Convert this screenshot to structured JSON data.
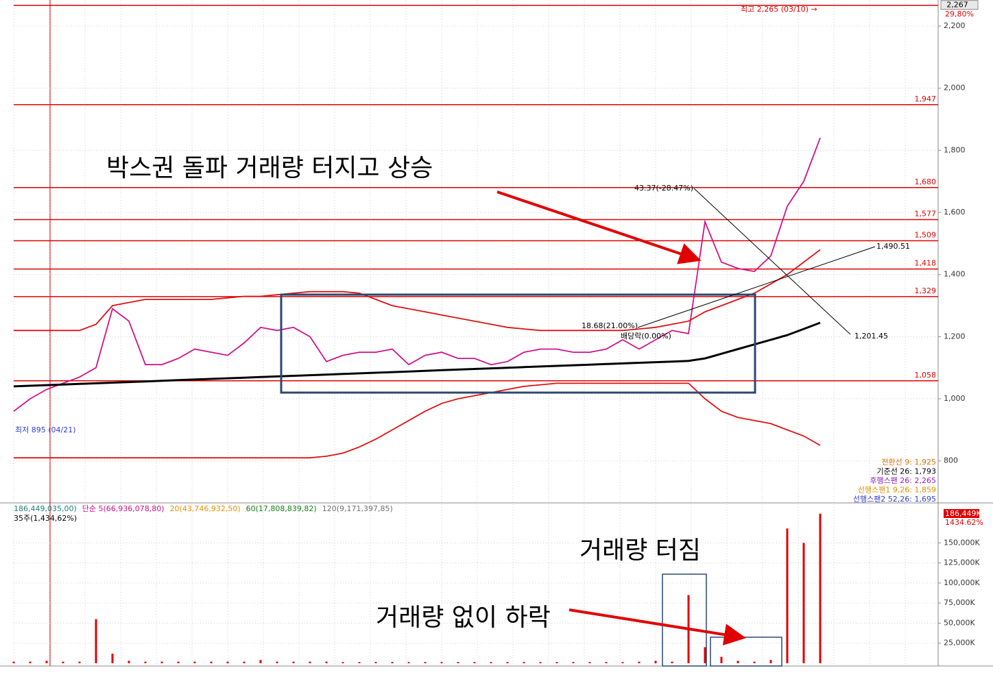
{
  "chart_data": [
    {
      "type": "line",
      "ylim": [
        667,
        2284
      ],
      "yticks": [
        800,
        {
          "value": 1000,
          "label": "1,000"
        },
        {
          "value": 1200,
          "label": "1,200"
        },
        {
          "value": 1400,
          "label": "1,400"
        },
        {
          "value": 1600,
          "label": "1,600"
        },
        {
          "value": 1800,
          "label": "1,800"
        },
        {
          "value": 2000,
          "label": "2,000"
        },
        {
          "value": 2200,
          "label": "2,200"
        }
      ],
      "grid": true,
      "levels": [
        {
          "value": 2267,
          "label": "2,267"
        },
        {
          "value": 1947,
          "label": "1,947"
        },
        {
          "value": 1680,
          "label": "1,680"
        },
        {
          "value": 1577,
          "label": "1,577"
        },
        {
          "value": 1509,
          "label": "1,509"
        },
        {
          "value": 1418,
          "label": "1,418"
        },
        {
          "value": 1329,
          "label": "1,329"
        },
        {
          "value": 1058,
          "label": "1,058"
        }
      ],
      "level_color": "#e00000",
      "series": [
        {
          "color": "#d0108a",
          "values": [
            960,
            1000,
            1030,
            1050,
            1070,
            1100,
            1290,
            1250,
            1110,
            1110,
            1130,
            1160,
            1150,
            1140,
            1180,
            1230,
            1220,
            1230,
            1200,
            1120,
            1140,
            1150,
            1150,
            1160,
            1110,
            1140,
            1150,
            1130,
            1130,
            1110,
            1120,
            1150,
            1160,
            1160,
            1150,
            1150,
            1160,
            1190,
            1160,
            1190,
            1220,
            1210,
            1570,
            1440,
            1420,
            1410,
            1460,
            1620,
            1700,
            1840
          ]
        },
        {
          "color": "#e01010",
          "values": [
            1220,
            1220,
            1220,
            1220,
            1220,
            1240,
            1300,
            1310,
            1320,
            1320,
            1320,
            1320,
            1320,
            1325,
            1330,
            1330,
            1335,
            1340,
            1345,
            1345,
            1345,
            1340,
            1320,
            1300,
            1290,
            1280,
            1270,
            1260,
            1250,
            1240,
            1230,
            1225,
            1220,
            1220,
            1220,
            1220,
            1220,
            1220,
            1225,
            1230,
            1240,
            1250,
            1280,
            1300,
            1320,
            1340,
            1370,
            1400,
            1440,
            1480
          ]
        },
        {
          "color": "#e01010",
          "values": [
            810,
            810,
            810,
            810,
            810,
            810,
            810,
            810,
            810,
            810,
            810,
            810,
            810,
            810,
            810,
            810,
            810,
            810,
            810,
            815,
            825,
            845,
            870,
            900,
            930,
            960,
            985,
            1000,
            1010,
            1020,
            1030,
            1040,
            1045,
            1050,
            1050,
            1050,
            1050,
            1050,
            1050,
            1050,
            1050,
            1050,
            1000,
            960,
            940,
            930,
            920,
            900,
            880,
            850
          ]
        },
        {
          "color": "#000000",
          "values": [
            1040,
            1042,
            1044,
            1046,
            1048,
            1050,
            1052,
            1054,
            1056,
            1058,
            1060,
            1062,
            1064,
            1066,
            1068,
            1070,
            1072,
            1074,
            1076,
            1078,
            1080,
            1082,
            1084,
            1086,
            1088,
            1090,
            1092,
            1094,
            1096,
            1098,
            1100,
            1102,
            1104,
            1106,
            1108,
            1110,
            1112,
            1114,
            1116,
            1118,
            1120,
            1122,
            1130,
            1145,
            1160,
            1175,
            1190,
            1205,
            1225,
            1245
          ]
        }
      ],
      "annotations": [
        "박스권 돌파 거래량 터지고 상승",
        "최고 2,265 (03/10) →",
        "29,80%",
        "43.37(-28.47%)",
        "1,490.51",
        "1,201.45",
        "18.68(21.00%)",
        "배당락(0.00%)",
        "최저 895 (04/21)"
      ],
      "legend_texts": [
        {
          "text": "전환선 9: 1,925",
          "color": "#e07000"
        },
        {
          "text": "기준선 26: 1,793",
          "color": "#000000"
        },
        {
          "text": "후행스팬 26: 2,265",
          "color": "#9020b0"
        },
        {
          "text": "선행스팬1 9,26: 1,859",
          "color": "#e09000"
        },
        {
          "text": "선행스팬2 52,26: 1,695",
          "color": "#3040d0"
        }
      ]
    },
    {
      "type": "bar",
      "ylim": [
        0,
        199000
      ],
      "yticks": [
        {
          "value": 25000,
          "label": "25,000K"
        },
        {
          "value": 50000,
          "label": "50,000K"
        },
        {
          "value": 75000,
          "label": "75,000K"
        },
        {
          "value": 100000,
          "label": "100,000K"
        },
        {
          "value": 125000,
          "label": "125,000K"
        },
        {
          "value": 150000,
          "label": "150,000K"
        }
      ],
      "color": "#e00000",
      "values": [
        2000,
        2000,
        3000,
        2000,
        2000,
        55000,
        12000,
        3000,
        2000,
        2000,
        2000,
        2000,
        2000,
        2000,
        2000,
        4000,
        2000,
        2000,
        2000,
        2000,
        1500,
        1500,
        1500,
        1500,
        1500,
        1500,
        1500,
        1500,
        1500,
        1500,
        1500,
        1500,
        1500,
        1500,
        1500,
        1500,
        1500,
        1500,
        2000,
        3000,
        2000,
        85000,
        20000,
        8000,
        3000,
        2000,
        4000,
        168000,
        150000,
        186449
      ],
      "last_label": "186,449K",
      "last_change": "1434.62%",
      "header": [
        {
          "text": "186,449,035,00)",
          "color": "#208080"
        },
        {
          "text": "단순 5(66,936,078,80)",
          "color": "#d0108a"
        },
        {
          "text": "20(43,746,932,50)",
          "color": "#e09000"
        },
        {
          "text": "60(17,808,839,82)",
          "color": "#108010"
        },
        {
          "text": "120(9,171,397,85)",
          "color": "#707070"
        }
      ],
      "header2": "35주(1,434,62%)",
      "annotations": [
        "거래량 터짐",
        "거래량 없이 하락"
      ]
    }
  ]
}
